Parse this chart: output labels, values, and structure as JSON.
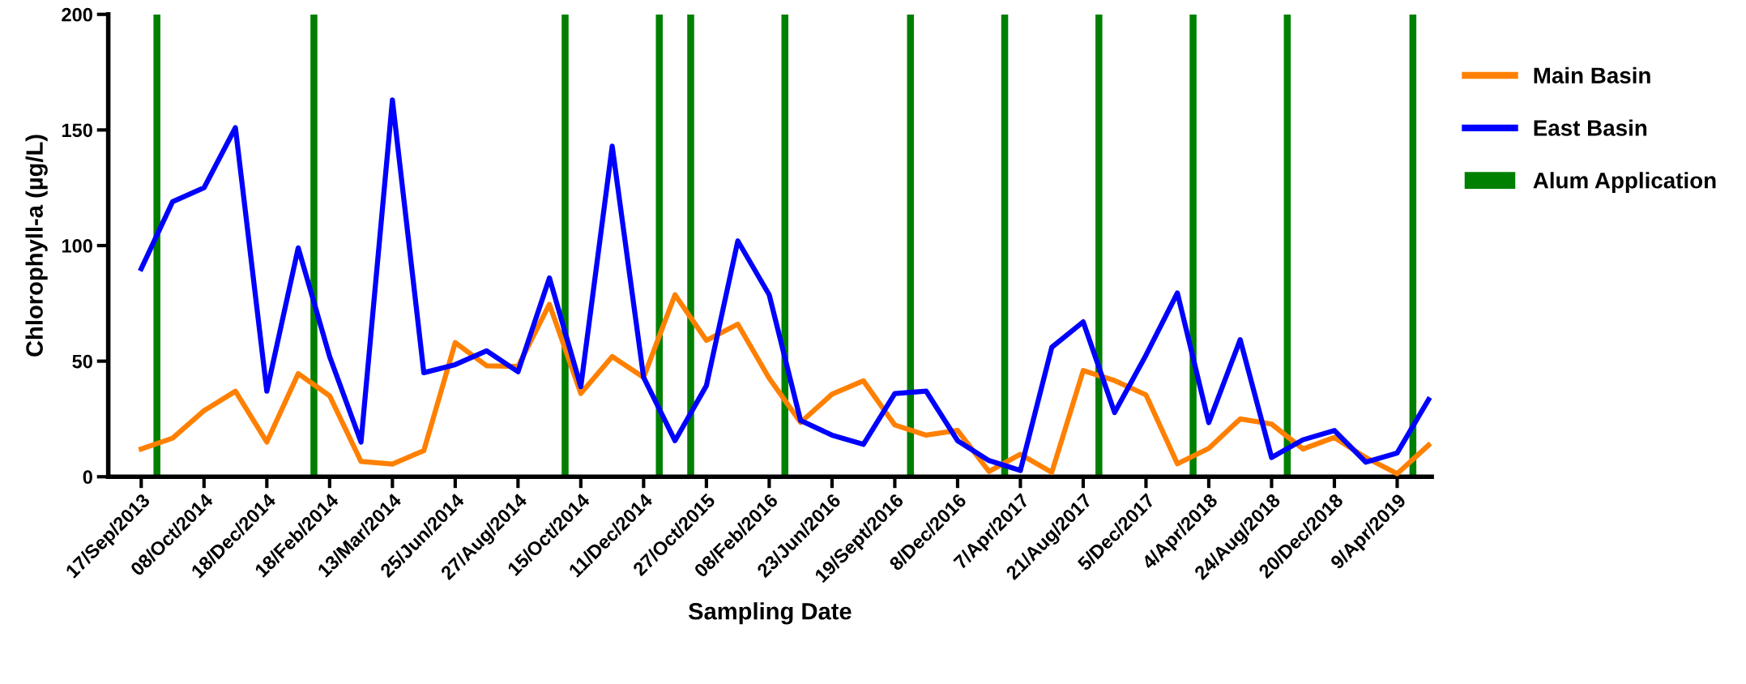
{
  "chart_data": {
    "type": "line",
    "xlabel": "Sampling Date",
    "ylabel": "Chlorophyll-a (µg/L)",
    "categories": [
      "17/Sep/2013",
      null,
      "08/Oct/2014",
      null,
      "18/Dec/2014",
      null,
      "18/Feb/2014",
      null,
      "13/Mar/2014",
      null,
      "25/Jun/2014",
      null,
      "27/Aug/2014",
      null,
      "15/Oct/2014",
      null,
      "11/Dec/2014",
      null,
      "27/Oct/2015",
      null,
      "08/Feb/2016",
      null,
      "23/Jun/2016",
      null,
      "19/Sept/2016",
      null,
      "8/Dec/2016",
      null,
      "7/Apr/2017",
      null,
      "21/Aug/2017",
      null,
      "5/Dec/2017",
      null,
      "4/Apr/2018",
      null,
      "24/Aug/2018",
      null,
      "20/Dec/2018",
      null,
      "9/Apr/2019",
      null
    ],
    "series": [
      {
        "name": "Main Basin",
        "color": "#ff8000",
        "values": [
          12,
          16.7,
          28.6,
          37,
          15,
          44.6,
          35,
          6.6,
          5.5,
          11.3,
          58,
          48,
          47.7,
          74.6,
          36,
          52,
          43,
          78.7,
          59,
          66,
          42.6,
          23.5,
          35.7,
          41.5,
          22.4,
          18,
          20,
          2.3,
          9.7,
          1.9,
          45.9,
          41.6,
          35.4,
          5.6,
          12.3,
          25,
          22.8,
          12,
          17,
          8.3,
          1.3,
          13.7
        ]
      },
      {
        "name": "East Basin",
        "color": "#0000ff",
        "values": [
          90,
          119,
          125,
          151,
          37,
          99,
          52,
          15,
          163,
          45,
          48.5,
          54.5,
          45.4,
          86,
          39,
          143,
          43,
          15.6,
          39.4,
          102,
          78.7,
          24.3,
          18,
          14,
          36,
          37,
          15.6,
          7,
          2.7,
          56,
          67,
          27.8,
          52.6,
          79.5,
          23.4,
          59.3,
          8.3,
          16,
          20,
          6.3,
          10.3,
          33.4
        ]
      },
      {
        "name": "Alum Application",
        "type": "bar",
        "color": "#008000",
        "values": [
          200,
          null,
          null,
          null,
          null,
          200,
          null,
          null,
          null,
          null,
          null,
          null,
          null,
          200,
          null,
          null,
          200,
          200,
          null,
          null,
          200,
          null,
          null,
          null,
          200,
          null,
          null,
          200,
          null,
          null,
          200,
          null,
          null,
          200,
          null,
          null,
          200,
          null,
          null,
          null,
          200,
          null
        ]
      }
    ],
    "ylim": [
      0,
      200
    ],
    "yticks": [
      0,
      50,
      100,
      150,
      200
    ],
    "grid": false,
    "legend": "right",
    "marker": "none",
    "line_style": "solid"
  }
}
